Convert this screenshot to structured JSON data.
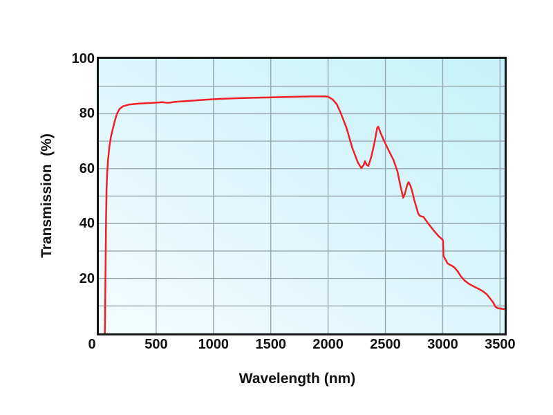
{
  "figure": {
    "background_color": "#ffffff",
    "frame_color": "#151515",
    "grid_color": "#97a7aa",
    "plot_gradient_from": "#c6f1fa",
    "plot_gradient_to": "#f3fcfd",
    "curve_color": "#ee2026"
  },
  "chart_data": {
    "type": "line",
    "title": "",
    "xlabel": "Wavelength (nm)",
    "ylabel": "Transmission  (%)",
    "xlim": [
      0,
      3540
    ],
    "ylim": [
      0,
      100
    ],
    "x_ticks": [
      0,
      500,
      1000,
      1500,
      2000,
      2500,
      3000,
      3500
    ],
    "y_ticks": [
      100,
      80,
      60,
      40,
      20
    ],
    "x_gridlines": [
      500,
      1000,
      1500,
      2000,
      2500,
      3000,
      3500
    ],
    "y_gridlines": [
      10,
      20,
      30,
      40,
      50,
      60,
      70,
      80,
      90
    ],
    "grid": true,
    "legend_position": "none",
    "series": [
      {
        "name": "transmission",
        "color": "#ee2026",
        "points": [
          [
            52,
            0
          ],
          [
            55,
            8
          ],
          [
            57,
            18
          ],
          [
            60,
            30
          ],
          [
            63,
            42
          ],
          [
            67,
            52
          ],
          [
            72,
            58
          ],
          [
            80,
            63
          ],
          [
            92,
            68
          ],
          [
            105,
            71.5
          ],
          [
            122,
            74.5
          ],
          [
            140,
            77.5
          ],
          [
            158,
            80
          ],
          [
            180,
            81.7
          ],
          [
            210,
            82.7
          ],
          [
            260,
            83.3
          ],
          [
            350,
            83.7
          ],
          [
            450,
            83.9
          ],
          [
            520,
            84.1
          ],
          [
            555,
            84.2
          ],
          [
            585,
            84.05
          ],
          [
            615,
            84.0
          ],
          [
            660,
            84.3
          ],
          [
            760,
            84.6
          ],
          [
            900,
            85.0
          ],
          [
            1050,
            85.4
          ],
          [
            1250,
            85.7
          ],
          [
            1450,
            85.9
          ],
          [
            1650,
            86.1
          ],
          [
            1850,
            86.3
          ],
          [
            1975,
            86.3
          ],
          [
            2000,
            86.2
          ],
          [
            2040,
            85.2
          ],
          [
            2075,
            83.5
          ],
          [
            2110,
            80.3
          ],
          [
            2160,
            74.9
          ],
          [
            2210,
            67.7
          ],
          [
            2260,
            62.2
          ],
          [
            2290,
            60.2
          ],
          [
            2310,
            61.3
          ],
          [
            2322,
            62.7
          ],
          [
            2338,
            61.3
          ],
          [
            2352,
            61.0
          ],
          [
            2378,
            64.5
          ],
          [
            2405,
            69.5
          ],
          [
            2428,
            74.8
          ],
          [
            2438,
            75.3
          ],
          [
            2458,
            73.0
          ],
          [
            2492,
            69.8
          ],
          [
            2530,
            66.5
          ],
          [
            2570,
            63.2
          ],
          [
            2605,
            59.0
          ],
          [
            2635,
            53.0
          ],
          [
            2655,
            49.4
          ],
          [
            2670,
            50.8
          ],
          [
            2688,
            53.8
          ],
          [
            2702,
            55.1
          ],
          [
            2718,
            53.8
          ],
          [
            2735,
            51.5
          ],
          [
            2752,
            48.5
          ],
          [
            2768,
            46.3
          ],
          [
            2785,
            43.8
          ],
          [
            2800,
            42.8
          ],
          [
            2832,
            42.4
          ],
          [
            2865,
            40.5
          ],
          [
            2915,
            37.8
          ],
          [
            2962,
            35.5
          ],
          [
            2996,
            34.2
          ],
          [
            3003,
            33.8
          ],
          [
            3007,
            28.2
          ],
          [
            3020,
            27.2
          ],
          [
            3042,
            25.5
          ],
          [
            3062,
            25.0
          ],
          [
            3082,
            24.6
          ],
          [
            3102,
            24.0
          ],
          [
            3132,
            22.5
          ],
          [
            3158,
            20.8
          ],
          [
            3192,
            19.2
          ],
          [
            3230,
            18.0
          ],
          [
            3275,
            17.0
          ],
          [
            3315,
            16.2
          ],
          [
            3352,
            15.3
          ],
          [
            3385,
            14.2
          ],
          [
            3412,
            12.8
          ],
          [
            3440,
            11.3
          ],
          [
            3458,
            9.8
          ],
          [
            3478,
            9.2
          ],
          [
            3508,
            9.0
          ],
          [
            3540,
            8.8
          ]
        ]
      }
    ]
  }
}
